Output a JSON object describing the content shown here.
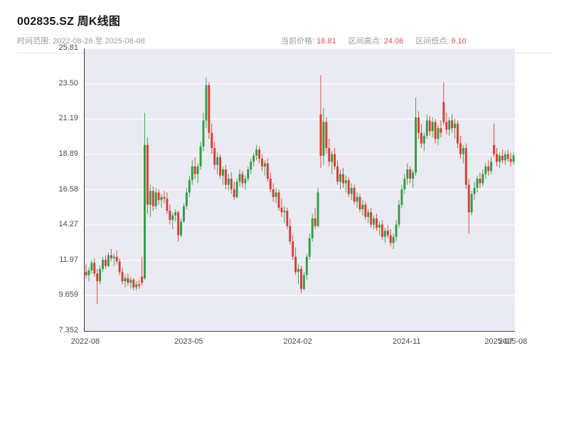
{
  "header": {
    "title": "002835.SZ 周K线图",
    "date_range_label": "时间范围:",
    "date_range": "2022-08-26 至 2025-08-08",
    "stats": [
      {
        "label": "当前价格:",
        "value": "18.81"
      },
      {
        "label": "区间高点:",
        "value": "24.06"
      },
      {
        "label": "区间低点:",
        "value": "9.10"
      }
    ]
  },
  "colors": {
    "up": "#2e9e44",
    "down": "#dc3b30",
    "plot_bg": "#eaeaf2",
    "grid": "#ffffff",
    "accent": "#dd5147"
  },
  "chart_data": {
    "type": "candlestick",
    "title": "002835.SZ 周K线图",
    "x_start": "2022-08-26",
    "x_end": "2025-08-08",
    "current_price": 18.81,
    "range_high": 24.06,
    "range_low": 9.1,
    "grid": true,
    "legend": false,
    "ylim": [
      7.352,
      25.81
    ],
    "y_ticks": [
      {
        "label": "25.81",
        "value": 25.81
      },
      {
        "label": "23.50",
        "value": 23.5
      },
      {
        "label": "21.19",
        "value": 21.19
      },
      {
        "label": "18.89",
        "value": 18.89
      },
      {
        "label": "16.58",
        "value": 16.58
      },
      {
        "label": "14.27",
        "value": 14.27
      },
      {
        "label": "11.97",
        "value": 11.97
      },
      {
        "label": "9.659",
        "value": 9.659
      },
      {
        "label": "7.352",
        "value": 7.352
      }
    ],
    "x_ticks": [
      {
        "label": "2022-08",
        "index": 0
      },
      {
        "label": "2023-05",
        "index": 37
      },
      {
        "label": "2024-02",
        "index": 76
      },
      {
        "label": "2024-11",
        "index": 115
      },
      {
        "label": "2025-07",
        "index": 148
      },
      {
        "label": "2025-08",
        "index": 153
      }
    ],
    "candles": [
      [
        11.2,
        11.7,
        10.8,
        11.0
      ],
      [
        11.0,
        11.5,
        10.6,
        11.3
      ],
      [
        11.3,
        12.0,
        11.1,
        11.8
      ],
      [
        11.8,
        12.1,
        10.9,
        11.1
      ],
      [
        11.1,
        11.4,
        9.1,
        10.6
      ],
      [
        10.6,
        11.6,
        10.4,
        11.4
      ],
      [
        11.4,
        12.2,
        11.2,
        12.0
      ],
      [
        12.0,
        12.3,
        11.4,
        11.6
      ],
      [
        11.6,
        12.5,
        11.5,
        12.3
      ],
      [
        12.3,
        12.7,
        11.9,
        12.1
      ],
      [
        12.1,
        12.4,
        11.6,
        12.2
      ],
      [
        12.2,
        12.6,
        11.7,
        11.9
      ],
      [
        11.9,
        12.1,
        11.0,
        11.2
      ],
      [
        11.2,
        11.5,
        10.4,
        10.6
      ],
      [
        10.6,
        11.0,
        10.2,
        10.8
      ],
      [
        10.8,
        11.1,
        10.3,
        10.5
      ],
      [
        10.5,
        10.9,
        10.1,
        10.7
      ],
      [
        10.7,
        10.8,
        10.0,
        10.2
      ],
      [
        10.2,
        10.6,
        10.0,
        10.4
      ],
      [
        10.4,
        10.7,
        10.1,
        10.3
      ],
      [
        10.9,
        12.2,
        10.3,
        10.5
      ],
      [
        10.8,
        21.6,
        10.7,
        19.5
      ],
      [
        19.5,
        20.0,
        15.0,
        15.6
      ],
      [
        15.6,
        16.9,
        14.8,
        16.5
      ],
      [
        16.5,
        16.8,
        15.2,
        15.5
      ],
      [
        15.5,
        16.7,
        15.3,
        16.4
      ],
      [
        16.4,
        16.6,
        15.6,
        15.9
      ],
      [
        15.9,
        16.3,
        15.4,
        16.1
      ],
      [
        16.1,
        16.5,
        15.7,
        16.0
      ],
      [
        16.0,
        16.4,
        15.0,
        15.2
      ],
      [
        15.2,
        15.6,
        14.3,
        14.6
      ],
      [
        14.6,
        15.1,
        14.0,
        14.9
      ],
      [
        14.9,
        15.3,
        14.5,
        15.1
      ],
      [
        15.1,
        15.2,
        13.2,
        13.6
      ],
      [
        13.6,
        14.7,
        13.5,
        14.5
      ],
      [
        14.5,
        15.7,
        14.4,
        15.5
      ],
      [
        15.5,
        16.7,
        15.3,
        16.4
      ],
      [
        16.4,
        17.5,
        16.1,
        17.2
      ],
      [
        17.2,
        18.5,
        16.9,
        18.1
      ],
      [
        18.1,
        18.7,
        17.3,
        17.6
      ],
      [
        17.6,
        18.3,
        17.0,
        18.1
      ],
      [
        18.1,
        19.7,
        17.9,
        19.4
      ],
      [
        19.4,
        21.6,
        19.1,
        21.1
      ],
      [
        21.1,
        23.9,
        20.6,
        23.4
      ],
      [
        23.4,
        23.6,
        19.9,
        20.3
      ],
      [
        20.3,
        20.9,
        18.9,
        19.3
      ],
      [
        19.3,
        19.7,
        17.9,
        18.2
      ],
      [
        18.2,
        19.0,
        17.6,
        18.7
      ],
      [
        18.7,
        18.9,
        17.3,
        17.5
      ],
      [
        17.5,
        18.1,
        16.9,
        17.9
      ],
      [
        17.9,
        18.2,
        16.6,
        16.9
      ],
      [
        16.9,
        17.6,
        16.5,
        17.3
      ],
      [
        17.3,
        17.7,
        16.3,
        16.6
      ],
      [
        16.6,
        17.1,
        15.9,
        16.1
      ],
      [
        16.1,
        17.3,
        16.0,
        17.1
      ],
      [
        17.1,
        17.9,
        16.8,
        17.6
      ],
      [
        17.6,
        17.8,
        16.7,
        17.0
      ],
      [
        17.0,
        17.5,
        16.6,
        17.3
      ],
      [
        17.3,
        18.1,
        17.1,
        17.9
      ],
      [
        17.9,
        18.6,
        17.6,
        18.4
      ],
      [
        18.4,
        19.0,
        18.1,
        18.8
      ],
      [
        18.8,
        19.5,
        18.5,
        19.2
      ],
      [
        19.2,
        19.4,
        18.3,
        18.6
      ],
      [
        18.6,
        18.9,
        17.8,
        18.1
      ],
      [
        18.1,
        18.5,
        17.5,
        18.3
      ],
      [
        18.3,
        18.6,
        17.1,
        17.3
      ],
      [
        17.3,
        17.7,
        16.4,
        16.6
      ],
      [
        16.6,
        17.0,
        15.8,
        16.1
      ],
      [
        16.1,
        16.7,
        15.7,
        16.4
      ],
      [
        16.4,
        16.6,
        15.2,
        15.4
      ],
      [
        15.4,
        16.0,
        14.8,
        15.1
      ],
      [
        15.1,
        15.5,
        14.4,
        15.2
      ],
      [
        15.2,
        15.4,
        14.0,
        14.2
      ],
      [
        14.2,
        14.7,
        13.0,
        13.2
      ],
      [
        13.2,
        13.6,
        12.0,
        12.2
      ],
      [
        12.2,
        12.8,
        11.0,
        11.2
      ],
      [
        11.2,
        11.7,
        10.4,
        11.4
      ],
      [
        11.4,
        11.6,
        9.8,
        10.1
      ],
      [
        10.1,
        11.2,
        10.0,
        11.0
      ],
      [
        11.0,
        12.4,
        10.7,
        12.2
      ],
      [
        12.2,
        13.7,
        12.0,
        13.4
      ],
      [
        13.4,
        15.0,
        13.2,
        14.7
      ],
      [
        14.7,
        15.4,
        14.0,
        14.2
      ],
      [
        14.2,
        16.7,
        14.1,
        16.4
      ],
      [
        21.5,
        24.06,
        18.0,
        18.8
      ],
      [
        18.8,
        21.9,
        18.2,
        21.0
      ],
      [
        21.0,
        21.3,
        18.9,
        19.3
      ],
      [
        19.3,
        19.9,
        18.1,
        18.4
      ],
      [
        18.4,
        19.1,
        17.6,
        18.9
      ],
      [
        18.9,
        19.3,
        17.9,
        18.1
      ],
      [
        18.1,
        18.5,
        16.9,
        17.1
      ],
      [
        17.1,
        17.9,
        16.6,
        17.6
      ],
      [
        17.6,
        18.0,
        16.7,
        17.0
      ],
      [
        17.0,
        17.5,
        16.4,
        17.2
      ],
      [
        17.2,
        17.4,
        16.1,
        16.3
      ],
      [
        16.3,
        17.0,
        15.9,
        16.7
      ],
      [
        16.7,
        16.9,
        15.6,
        15.8
      ],
      [
        15.8,
        16.4,
        15.4,
        16.1
      ],
      [
        16.1,
        16.3,
        15.1,
        15.3
      ],
      [
        15.3,
        15.9,
        14.9,
        15.6
      ],
      [
        15.6,
        15.8,
        14.6,
        14.8
      ],
      [
        14.8,
        15.3,
        14.4,
        15.1
      ],
      [
        15.1,
        15.4,
        14.1,
        14.3
      ],
      [
        14.3,
        14.9,
        14.0,
        14.7
      ],
      [
        14.7,
        15.0,
        13.9,
        14.1
      ],
      [
        14.1,
        14.5,
        13.6,
        14.3
      ],
      [
        14.3,
        14.6,
        13.3,
        13.5
      ],
      [
        13.5,
        14.1,
        13.1,
        13.9
      ],
      [
        13.9,
        14.3,
        13.4,
        13.6
      ],
      [
        13.6,
        14.0,
        12.9,
        13.1
      ],
      [
        13.1,
        13.7,
        12.7,
        13.5
      ],
      [
        13.5,
        14.6,
        13.2,
        14.3
      ],
      [
        14.3,
        15.9,
        14.1,
        15.6
      ],
      [
        15.6,
        16.9,
        15.4,
        16.6
      ],
      [
        16.6,
        17.6,
        16.3,
        17.3
      ],
      [
        17.3,
        18.3,
        16.9,
        17.9
      ],
      [
        17.9,
        18.1,
        17.0,
        17.3
      ],
      [
        17.3,
        17.9,
        16.7,
        17.7
      ],
      [
        17.7,
        22.6,
        17.5,
        21.3
      ],
      [
        21.3,
        21.7,
        19.9,
        20.3
      ],
      [
        20.3,
        20.9,
        19.3,
        19.6
      ],
      [
        19.6,
        20.3,
        19.1,
        20.1
      ],
      [
        20.1,
        21.5,
        19.9,
        21.1
      ],
      [
        21.1,
        21.4,
        20.1,
        20.4
      ],
      [
        20.4,
        21.3,
        20.0,
        21.0
      ],
      [
        21.0,
        21.2,
        19.6,
        19.9
      ],
      [
        19.9,
        20.8,
        19.5,
        20.6
      ],
      [
        20.6,
        21.1,
        20.0,
        20.3
      ],
      [
        22.3,
        23.6,
        20.8,
        21.0
      ],
      [
        21.0,
        21.6,
        20.2,
        20.5
      ],
      [
        20.5,
        21.3,
        20.1,
        21.1
      ],
      [
        21.1,
        21.5,
        20.3,
        20.6
      ],
      [
        20.6,
        21.2,
        19.9,
        20.9
      ],
      [
        20.9,
        21.1,
        19.3,
        19.6
      ],
      [
        19.6,
        20.1,
        18.6,
        18.9
      ],
      [
        18.9,
        19.5,
        18.3,
        19.3
      ],
      [
        19.3,
        19.6,
        16.6,
        16.9
      ],
      [
        16.9,
        17.3,
        13.7,
        15.1
      ],
      [
        15.1,
        16.5,
        14.9,
        16.3
      ],
      [
        16.3,
        17.1,
        15.9,
        16.7
      ],
      [
        16.7,
        17.5,
        16.4,
        17.3
      ],
      [
        17.3,
        17.7,
        16.7,
        17.0
      ],
      [
        17.0,
        17.9,
        16.8,
        17.6
      ],
      [
        17.6,
        18.3,
        17.3,
        18.1
      ],
      [
        18.1,
        18.5,
        17.5,
        17.8
      ],
      [
        17.8,
        18.7,
        17.6,
        18.4
      ],
      [
        19.5,
        20.9,
        18.7,
        18.9
      ],
      [
        18.9,
        19.3,
        18.1,
        18.4
      ],
      [
        18.4,
        19.0,
        18.0,
        18.8
      ],
      [
        18.8,
        19.2,
        18.3,
        18.5
      ],
      [
        18.5,
        19.1,
        18.2,
        18.9
      ],
      [
        18.9,
        19.2,
        18.4,
        18.6
      ],
      [
        18.6,
        19.0,
        18.1,
        18.4
      ],
      [
        18.4,
        19.0,
        18.2,
        18.81
      ]
    ]
  }
}
